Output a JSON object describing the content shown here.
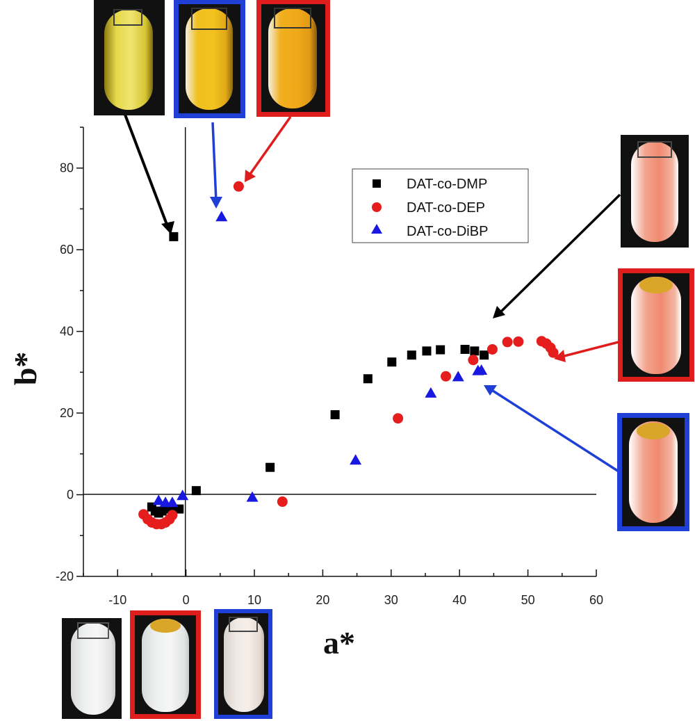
{
  "chart_data": {
    "type": "scatter",
    "title": "",
    "xlabel": "a*",
    "ylabel": "b*",
    "xlim": [
      -15,
      60
    ],
    "ylim": [
      -20,
      90
    ],
    "xticks": [
      -10,
      0,
      10,
      20,
      30,
      40,
      50,
      60
    ],
    "yticks": [
      -20,
      0,
      20,
      40,
      60,
      80
    ],
    "xtick_labels": [
      "-10",
      "0",
      "10",
      "20",
      "30",
      "40",
      "50",
      "60"
    ],
    "ytick_labels": [
      "-20",
      "0",
      "20",
      "40",
      "60",
      "80"
    ],
    "grid": false,
    "legend_position": "upper-right",
    "series": [
      {
        "name": "DAT-co-DMP",
        "marker": "square",
        "color": "#000000",
        "points": [
          [
            -1.8,
            63.2
          ],
          [
            -5.0,
            -3.0
          ],
          [
            -4.5,
            -4.0
          ],
          [
            -4.0,
            -4.5
          ],
          [
            -3.5,
            -4.0
          ],
          [
            -3.0,
            -3.5
          ],
          [
            -2.0,
            -3.5
          ],
          [
            -1.0,
            -3.5
          ],
          [
            1.5,
            1.0
          ],
          [
            12.3,
            6.7
          ],
          [
            21.8,
            19.6
          ],
          [
            26.6,
            28.4
          ],
          [
            30.1,
            32.5
          ],
          [
            33.0,
            34.2
          ],
          [
            35.2,
            35.2
          ],
          [
            37.2,
            35.5
          ],
          [
            40.8,
            35.6
          ],
          [
            42.2,
            35.2
          ],
          [
            43.6,
            34.2
          ]
        ]
      },
      {
        "name": "DAT-co-DEP",
        "marker": "circle",
        "color": "#e51d1d",
        "points": [
          [
            7.7,
            75.5
          ],
          [
            -6.2,
            -4.8
          ],
          [
            -5.6,
            -6.0
          ],
          [
            -5.0,
            -6.8
          ],
          [
            -4.3,
            -7.2
          ],
          [
            -3.6,
            -7.2
          ],
          [
            -3.0,
            -6.8
          ],
          [
            -2.4,
            -6.0
          ],
          [
            -2.0,
            -5.0
          ],
          [
            14.1,
            -1.7
          ],
          [
            31.0,
            18.7
          ],
          [
            38.0,
            29.0
          ],
          [
            42.0,
            33.0
          ],
          [
            44.8,
            35.6
          ],
          [
            47.0,
            37.4
          ],
          [
            48.6,
            37.5
          ],
          [
            52.0,
            37.6
          ],
          [
            52.7,
            37.0
          ],
          [
            53.3,
            36.0
          ],
          [
            53.7,
            34.8
          ]
        ]
      },
      {
        "name": "DAT-co-DiBP",
        "marker": "triangle",
        "color": "#1818e0",
        "points": [
          [
            5.2,
            68.0
          ],
          [
            -4.0,
            -1.5
          ],
          [
            -3.0,
            -2.0
          ],
          [
            -2.0,
            -2.0
          ],
          [
            -0.5,
            -0.3
          ],
          [
            9.7,
            -0.7
          ],
          [
            24.8,
            8.4
          ],
          [
            35.8,
            24.8
          ],
          [
            39.8,
            28.8
          ],
          [
            42.7,
            30.3
          ],
          [
            43.2,
            30.4
          ]
        ]
      }
    ],
    "annotations": [
      {
        "type": "photo-arrow",
        "photo": "vial-yellow-pale",
        "color": "#000000",
        "points_to": "DAT-co-DMP initial point"
      },
      {
        "type": "photo-arrow",
        "photo": "vial-yellow-deep",
        "color": "#1f3fd6",
        "points_to": "DAT-co-DiBP initial point"
      },
      {
        "type": "photo-arrow",
        "photo": "vial-yellow-orange",
        "color": "#e01d1d",
        "points_to": "DAT-co-DEP initial point"
      },
      {
        "type": "photo-arrow",
        "photo": "vial-salmon",
        "color": "#000000",
        "points_to": "DAT-co-DMP final points"
      },
      {
        "type": "photo-arrow",
        "photo": "vial-salmon",
        "color": "#e01d1d",
        "points_to": "DAT-co-DEP final points"
      },
      {
        "type": "photo-arrow",
        "photo": "vial-salmon",
        "color": "#1f3fd6",
        "points_to": "DAT-co-DiBP final points"
      },
      {
        "type": "photo",
        "photo": "vial-clear",
        "color": "#000000"
      },
      {
        "type": "photo",
        "photo": "vial-clear",
        "color": "#e01d1d"
      },
      {
        "type": "photo",
        "photo": "vial-clear",
        "color": "#1f3fd6"
      }
    ]
  }
}
